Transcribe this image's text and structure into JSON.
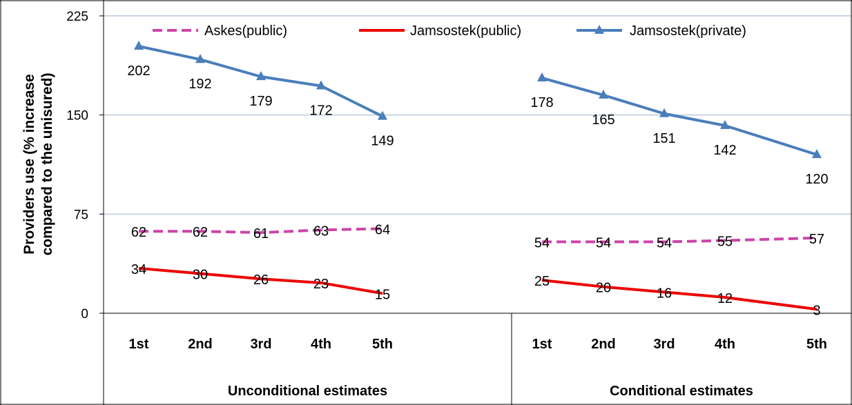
{
  "chart_data": {
    "type": "line",
    "ylabel": "Providers use (% increase compared to the unisured)",
    "ylim": [
      0,
      225
    ],
    "yticks": [
      0,
      75,
      150,
      225
    ],
    "grid": true,
    "legend_position": "top",
    "groups": [
      {
        "label": "Unconditional estimates",
        "categories": [
          "1st",
          "2nd",
          "3rd",
          "4th",
          "5th"
        ],
        "series": [
          {
            "name": "Askes(public)",
            "color": "#cc44aa",
            "dash": true,
            "marker": "none",
            "values": [
              62,
              62,
              61,
              63,
              64
            ]
          },
          {
            "name": "Jamsostek(public)",
            "color": "#ee0000",
            "dash": false,
            "marker": "none",
            "values": [
              34,
              30,
              26,
              23,
              15
            ]
          },
          {
            "name": "Jamsostek(private)",
            "color": "#4a7ebb",
            "dash": false,
            "marker": "triangle",
            "values": [
              202,
              192,
              179,
              172,
              149
            ]
          }
        ]
      },
      {
        "label": "Conditional estimates",
        "categories": [
          "1st",
          "2nd",
          "3rd",
          "4th",
          "5th"
        ],
        "series": [
          {
            "name": "Askes(public)",
            "color": "#cc44aa",
            "dash": true,
            "marker": "none",
            "values": [
              54,
              54,
              54,
              55,
              57
            ]
          },
          {
            "name": "Jamsostek(public)",
            "color": "#ee0000",
            "dash": false,
            "marker": "none",
            "values": [
              25,
              20,
              16,
              12,
              3
            ]
          },
          {
            "name": "Jamsostek(private)",
            "color": "#4a7ebb",
            "dash": false,
            "marker": "triangle",
            "values": [
              178,
              165,
              151,
              142,
              120
            ]
          }
        ]
      }
    ],
    "legend": [
      {
        "name": "Askes(public)",
        "color": "#cc44aa",
        "dash": true,
        "marker": "none"
      },
      {
        "name": "Jamsostek(public)",
        "color": "#ee0000",
        "dash": false,
        "marker": "none"
      },
      {
        "name": "Jamsostek(private)",
        "color": "#4a7ebb",
        "dash": false,
        "marker": "triangle"
      }
    ]
  }
}
